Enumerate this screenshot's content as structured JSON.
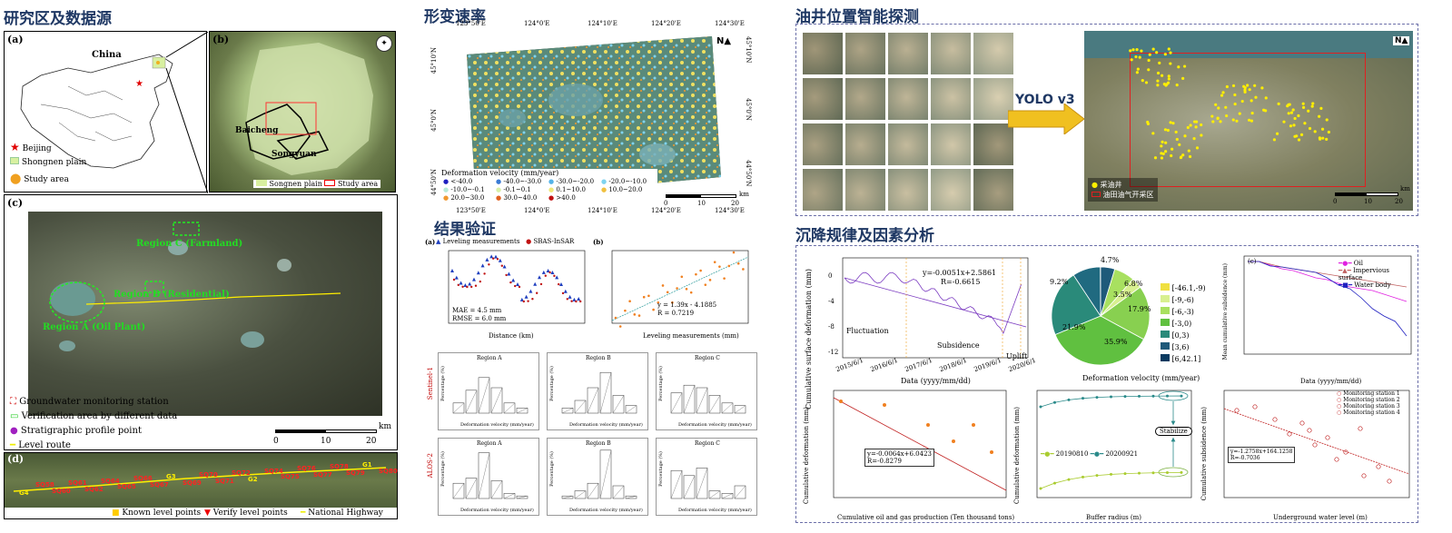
{
  "sections": {
    "study_area": "研究区及数据源",
    "deformation_rate": "形变速率",
    "result_validation": "结果验证",
    "oil_well_detection": "油井位置智能探测",
    "subsidence_analysis": "沉降规律及因素分析"
  },
  "study_area": {
    "panel_a_label": "(a)",
    "panel_b_label": "(b)",
    "panel_c_label": "(c)",
    "panel_d_label": "(d)",
    "china_label": "China",
    "legend_a": [
      "Beijing",
      "Shongnen plain",
      "Study area"
    ],
    "baicheng": "Baicheng",
    "songyuan": "Songyuan",
    "legend_b": [
      "Songnen plain",
      "Study area"
    ],
    "region_c": "Region C (Farmland)",
    "region_b": "Region B (Residential)",
    "region_a": "Region A (Oil Plant)",
    "legend_c": [
      "Groundwater monitoring station",
      "Verification area by different data",
      "Stratigraphic profile point",
      "Level route"
    ],
    "scale_c": [
      "0",
      "10",
      "20"
    ],
    "scale_unit": "km",
    "level_points": [
      "G4",
      "SQ58",
      "SQ60",
      "SQ61",
      "SQ62",
      "SQ64",
      "SQ65",
      "SQ66",
      "SQ67",
      "G3",
      "SQ69",
      "SQ70",
      "SQ71",
      "SQ72",
      "G2",
      "SQ74",
      "SQ75",
      "SQ76",
      "SQ77",
      "SQ78",
      "SQ79",
      "G1",
      "SQ80"
    ],
    "legend_d": [
      "Known level points",
      "Verify level points",
      "National Highway"
    ]
  },
  "deformation_map": {
    "top_ticks": [
      "123°50'E",
      "124°0'E",
      "124°10'E",
      "124°20'E",
      "124°30'E"
    ],
    "bottom_ticks": [
      "123°50'E",
      "124°0'E",
      "124°10'E",
      "124°20'E",
      "124°30'E"
    ],
    "left_ticks": [
      "45°10'N",
      "45°0'N",
      "44°50'N"
    ],
    "right_ticks": [
      "45°10'N",
      "45°0'N",
      "44°50'N"
    ],
    "legend_title": "Deformation velocity (mm/year)",
    "legend_items": [
      {
        "label": "<-40.0",
        "color": "#1f1fbf"
      },
      {
        "label": "-40.0~-30.0",
        "color": "#3a7bd5"
      },
      {
        "label": "-30.0~-20.0",
        "color": "#55b3e8"
      },
      {
        "label": "-20.0~-10.0",
        "color": "#7fd3f0"
      },
      {
        "label": "-10.0~-0.1",
        "color": "#b8ead8"
      },
      {
        "label": "-0.1~0.1",
        "color": "#d8f0a8"
      },
      {
        "label": "0.1~10.0",
        "color": "#f0e878"
      },
      {
        "label": "10.0~20.0",
        "color": "#f0c040"
      },
      {
        "label": "20.0~30.0",
        "color": "#f09830"
      },
      {
        "label": "30.0~40.0",
        "color": "#e06020"
      },
      {
        "label": ">40.0",
        "color": "#c01010"
      }
    ],
    "scale": [
      "0",
      "10",
      "20"
    ],
    "scale_unit": "km"
  },
  "validation": {
    "a_label": "(a)",
    "b_label": "(b)",
    "legend": [
      "Leveling measurements",
      "SBAS-InSAR"
    ],
    "a_ylabel": "Surface deformation (mm)",
    "a_xlabel": "Distance (km)",
    "a_xticks": [
      "0",
      "2",
      "4",
      "6",
      "8",
      "10",
      "12",
      "14",
      "16",
      "18",
      "20",
      "22"
    ],
    "a_yticks": [
      "10",
      "5",
      "0",
      "-5",
      "-10"
    ],
    "mae": "MAE = 4.5 mm",
    "rmse": "RMSE = 6.0 mm",
    "b_ylabel": "SBAS-InSAR (mm)",
    "b_xlabel": "Leveling measurements (mm)",
    "b_xticks": [
      "-4",
      "-2",
      "0",
      "2",
      "4",
      "6",
      "8",
      "10"
    ],
    "b_yticks": [
      "10",
      "5",
      "0",
      "-5",
      "-10"
    ],
    "b_eq": "y = 1.39x - 4.1885",
    "b_r": "R = 0.7219",
    "sentinel_label": "Sentinel-1",
    "alos_label": "ALOS-2",
    "region_titles": [
      "Region A",
      "Region B",
      "Region C"
    ],
    "hist_ylabel": "Percentage (%)",
    "hist_xlabel": "Deformation velocity (mm/year)"
  },
  "oil_well": {
    "yolo": "YOLO v3",
    "legend": [
      "采油井",
      "油田油气开采区"
    ],
    "scale": [
      "0",
      "10",
      "20"
    ],
    "scale_unit": "km"
  },
  "subsidence": {
    "ts_ylabel": "Cumulative surface deformation (mm)",
    "ts_xlabel": "Data (yyyy/mm/dd)",
    "ts_eq": "y=-0.0051x+2.5861",
    "ts_r": "R=-0.6615",
    "ts_xticks": [
      "2015/6/1",
      "2016/6/1",
      "2017/6/1",
      "2018/6/1",
      "2019/6/1",
      "2020/6/1"
    ],
    "ts_yticks": [
      "0",
      "-4",
      "-8",
      "-12"
    ],
    "phases": [
      "Fluctuation",
      "Subsidence",
      "Uplift"
    ],
    "pie_labels": [
      "4.7%",
      "6.8%",
      "3.5%",
      "17.9%",
      "35.9%",
      "21.9%",
      "9.2%"
    ],
    "pie_legend": [
      "[-46.1,-9)",
      "[-9,-6)",
      "[-6,-3)",
      "[-3,0)",
      "[0,3)",
      "[3,6)",
      "[6,42.1]"
    ],
    "pie_xlabel": "Deformation velocity (mm/year)",
    "c_label": "(c)",
    "c_legend": [
      "Oil",
      "Impervious surface",
      "Water body"
    ],
    "c_ylabel": "Mean cumulative subsidence (mm)",
    "c_xlabel": "Data (yyyy/mm/dd)",
    "oil_ylabel": "Cumulative deformation (mm)",
    "oil_xlabel": "Cumulative oil and gas production (Ten thousand tons)",
    "oil_eq": "y=-0.0064x+6.0423",
    "oil_r": "R=-0.8279",
    "oil_xticks": [
      "400",
      "600",
      "800",
      "1000",
      "1200",
      "1400",
      "1600",
      "1800",
      "2000",
      "2200",
      "2400"
    ],
    "oil_yticks": [
      "4",
      "0",
      "-4",
      "-8",
      "-12"
    ],
    "buf_ylabel": "Cumulative deformation (mm)",
    "buf_xlabel": "Buffer radius (m)",
    "buf_series": [
      "20190810",
      "20200921"
    ],
    "buf_stabilize": "Stabilize",
    "buf_xticks": [
      "0",
      "100",
      "200",
      "300",
      "400",
      "500",
      "600",
      "700",
      "800",
      "900",
      "1000"
    ],
    "buf_yticks": [
      "4",
      "2",
      "0",
      "-2",
      "-4",
      "-6",
      "-8",
      "-10",
      "-12"
    ],
    "gw_legend": [
      "Monitoring station 1",
      "Monitoring station 2",
      "Monitoring station 3",
      "Monitoring station 4"
    ],
    "gw_eq": "y=-1.2758x+164.1258",
    "gw_r": "R=-0.7036",
    "gw_ylabel": "Cumulative subsidence (mm)",
    "gw_xlabel": "Underground water level (m)",
    "gw_xticks": [
      "118",
      "120",
      "122",
      "124",
      "126",
      "128",
      "130",
      "132",
      "134",
      "136"
    ],
    "gw_yticks": [
      "20",
      "10",
      "0",
      "-10"
    ]
  }
}
